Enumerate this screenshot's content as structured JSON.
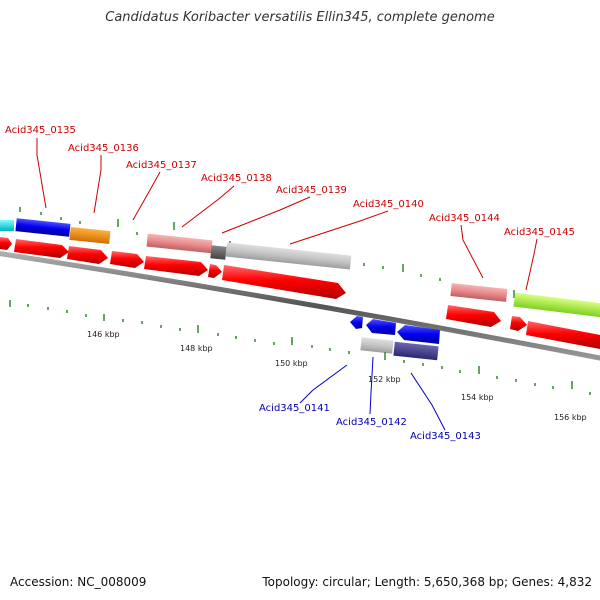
{
  "title": "Candidatus Koribacter versatilis Ellin345, complete genome",
  "accession": "Accession: NC_008009",
  "topology": "Topology: circular; Length: 5,650,368 bp; Genes: 4,832",
  "scale_labels": [
    "146 kbp",
    "148 kbp",
    "150 kbp",
    "152 kbp",
    "154 kbp",
    "156 kbp"
  ],
  "genes_forward": [
    "Acid345_0135",
    "Acid345_0136",
    "Acid345_0137",
    "Acid345_0138",
    "Acid345_0139",
    "Acid345_0140",
    "Acid345_0144",
    "Acid345_0145"
  ],
  "genes_reverse": [
    "Acid345_0141",
    "Acid345_0142",
    "Acid345_0143"
  ],
  "colors": {
    "forward_label": "#cc0000",
    "reverse_label": "#0000aa",
    "cds": "#ff0000",
    "tick": "#2e8b2e",
    "backbone": "#808080"
  }
}
